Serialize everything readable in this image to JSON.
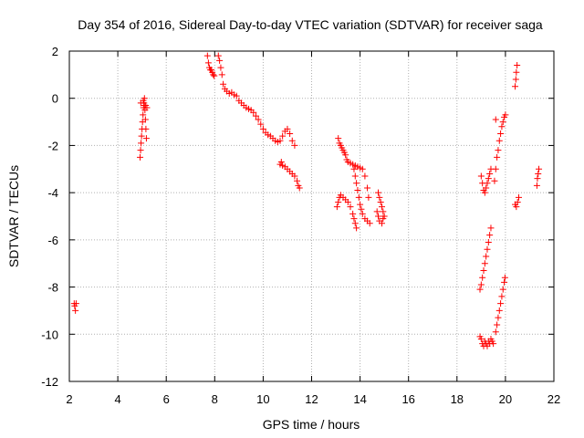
{
  "chart_data": {
    "type": "scatter",
    "title": "Day 354 of 2016, Sidereal Day-to-day VTEC variation (SDTVAR) for receiver saga",
    "xlabel": "GPS time / hours",
    "ylabel": "SDTVAR / TECUs",
    "xlim": [
      2,
      22
    ],
    "ylim": [
      -12,
      2
    ],
    "xticks": [
      "2",
      "4",
      "6",
      "8",
      "10",
      "12",
      "14",
      "16",
      "18",
      "20",
      "22"
    ],
    "yticks": [
      "2",
      "0",
      "-2",
      "-4",
      "-6",
      "-8",
      "-10",
      "-12"
    ],
    "grid": true,
    "marker": "+",
    "color": "#ff0000",
    "series": [
      {
        "name": "SDTVAR",
        "points": [
          [
            2.2,
            -8.7
          ],
          [
            2.22,
            -8.8
          ],
          [
            2.25,
            -9.0
          ],
          [
            2.28,
            -8.7
          ],
          [
            4.92,
            -2.5
          ],
          [
            4.94,
            -2.2
          ],
          [
            4.96,
            -1.9
          ],
          [
            4.98,
            -1.6
          ],
          [
            5.0,
            -1.3
          ],
          [
            5.02,
            -1.0
          ],
          [
            5.04,
            -0.7
          ],
          [
            5.06,
            -0.4
          ],
          [
            5.08,
            -0.2
          ],
          [
            5.1,
            -0.3
          ],
          [
            5.12,
            -0.5
          ],
          [
            5.14,
            -0.9
          ],
          [
            5.16,
            -1.3
          ],
          [
            5.18,
            -1.7
          ],
          [
            4.95,
            -0.2
          ],
          [
            5.05,
            -0.1
          ],
          [
            5.1,
            0.0
          ],
          [
            5.15,
            -0.3
          ],
          [
            5.2,
            -0.4
          ],
          [
            7.7,
            1.8
          ],
          [
            7.74,
            1.5
          ],
          [
            7.78,
            1.3
          ],
          [
            7.82,
            1.2
          ],
          [
            7.86,
            1.2
          ],
          [
            7.9,
            1.1
          ],
          [
            7.94,
            1.0
          ],
          [
            7.98,
            0.95
          ],
          [
            8.15,
            1.8
          ],
          [
            8.2,
            1.6
          ],
          [
            8.25,
            1.3
          ],
          [
            8.3,
            1.0
          ],
          [
            8.35,
            0.6
          ],
          [
            8.42,
            0.4
          ],
          [
            8.5,
            0.3
          ],
          [
            8.6,
            0.2
          ],
          [
            8.7,
            0.25
          ],
          [
            8.8,
            0.15
          ],
          [
            8.9,
            0.1
          ],
          [
            9.0,
            -0.1
          ],
          [
            9.1,
            -0.2
          ],
          [
            9.2,
            -0.3
          ],
          [
            9.3,
            -0.4
          ],
          [
            9.4,
            -0.45
          ],
          [
            9.5,
            -0.5
          ],
          [
            9.6,
            -0.6
          ],
          [
            9.7,
            -0.75
          ],
          [
            9.8,
            -0.9
          ],
          [
            9.9,
            -1.1
          ],
          [
            10.0,
            -1.3
          ],
          [
            10.1,
            -1.45
          ],
          [
            10.2,
            -1.55
          ],
          [
            10.3,
            -1.6
          ],
          [
            10.4,
            -1.7
          ],
          [
            10.5,
            -1.8
          ],
          [
            10.6,
            -1.85
          ],
          [
            10.7,
            -1.8
          ],
          [
            10.8,
            -1.6
          ],
          [
            10.9,
            -1.4
          ],
          [
            11.0,
            -1.3
          ],
          [
            11.1,
            -1.5
          ],
          [
            11.2,
            -1.8
          ],
          [
            11.3,
            -2.0
          ],
          [
            10.7,
            -2.8
          ],
          [
            10.75,
            -2.7
          ],
          [
            10.8,
            -2.85
          ],
          [
            10.9,
            -2.9
          ],
          [
            11.0,
            -3.0
          ],
          [
            11.1,
            -3.1
          ],
          [
            11.2,
            -3.2
          ],
          [
            11.3,
            -3.3
          ],
          [
            11.4,
            -3.5
          ],
          [
            11.45,
            -3.7
          ],
          [
            11.5,
            -3.8
          ],
          [
            13.1,
            -1.7
          ],
          [
            13.15,
            -1.9
          ],
          [
            13.2,
            -2.0
          ],
          [
            13.25,
            -2.1
          ],
          [
            13.3,
            -2.2
          ],
          [
            13.35,
            -2.3
          ],
          [
            13.4,
            -2.4
          ],
          [
            13.45,
            -2.6
          ],
          [
            13.5,
            -2.7
          ],
          [
            13.6,
            -2.75
          ],
          [
            13.7,
            -2.8
          ],
          [
            13.8,
            -2.85
          ],
          [
            13.9,
            -2.9
          ],
          [
            14.0,
            -2.95
          ],
          [
            14.1,
            -3.0
          ],
          [
            14.2,
            -3.3
          ],
          [
            14.3,
            -3.8
          ],
          [
            14.35,
            -4.2
          ],
          [
            13.05,
            -4.6
          ],
          [
            13.1,
            -4.4
          ],
          [
            13.15,
            -4.2
          ],
          [
            13.2,
            -4.1
          ],
          [
            13.3,
            -4.2
          ],
          [
            13.4,
            -4.3
          ],
          [
            13.5,
            -4.4
          ],
          [
            13.6,
            -4.6
          ],
          [
            13.7,
            -4.9
          ],
          [
            13.75,
            -5.1
          ],
          [
            13.8,
            -5.3
          ],
          [
            13.85,
            -5.5
          ],
          [
            13.75,
            -3.0
          ],
          [
            13.8,
            -3.3
          ],
          [
            13.85,
            -3.6
          ],
          [
            13.9,
            -3.9
          ],
          [
            13.95,
            -4.2
          ],
          [
            14.0,
            -4.5
          ],
          [
            14.05,
            -4.7
          ],
          [
            14.1,
            -4.9
          ],
          [
            14.2,
            -5.1
          ],
          [
            14.3,
            -5.2
          ],
          [
            14.4,
            -5.3
          ],
          [
            14.75,
            -4.0
          ],
          [
            14.8,
            -4.2
          ],
          [
            14.85,
            -4.4
          ],
          [
            14.9,
            -4.6
          ],
          [
            14.95,
            -4.8
          ],
          [
            15.0,
            -5.0
          ],
          [
            14.7,
            -4.8
          ],
          [
            14.75,
            -5.0
          ],
          [
            14.8,
            -5.2
          ],
          [
            14.9,
            -5.3
          ],
          [
            14.95,
            -5.1
          ],
          [
            18.95,
            -8.1
          ],
          [
            19.0,
            -7.9
          ],
          [
            19.05,
            -7.6
          ],
          [
            19.1,
            -7.3
          ],
          [
            19.15,
            -7.0
          ],
          [
            19.2,
            -6.7
          ],
          [
            19.25,
            -6.4
          ],
          [
            19.3,
            -6.1
          ],
          [
            19.35,
            -5.8
          ],
          [
            19.4,
            -5.5
          ],
          [
            18.95,
            -10.1
          ],
          [
            19.0,
            -10.2
          ],
          [
            19.05,
            -10.4
          ],
          [
            19.1,
            -10.5
          ],
          [
            19.15,
            -10.3
          ],
          [
            19.2,
            -10.4
          ],
          [
            19.25,
            -10.5
          ],
          [
            19.3,
            -10.3
          ],
          [
            19.35,
            -10.4
          ],
          [
            19.4,
            -10.2
          ],
          [
            19.45,
            -10.3
          ],
          [
            19.5,
            -10.4
          ],
          [
            19.0,
            -3.3
          ],
          [
            19.05,
            -3.6
          ],
          [
            19.1,
            -3.9
          ],
          [
            19.15,
            -4.0
          ],
          [
            19.2,
            -3.8
          ],
          [
            19.25,
            -3.6
          ],
          [
            19.3,
            -3.4
          ],
          [
            19.35,
            -3.2
          ],
          [
            19.4,
            -3.0
          ],
          [
            19.6,
            -9.9
          ],
          [
            19.65,
            -9.6
          ],
          [
            19.7,
            -9.3
          ],
          [
            19.75,
            -9.0
          ],
          [
            19.8,
            -8.7
          ],
          [
            19.85,
            -8.4
          ],
          [
            19.9,
            -8.1
          ],
          [
            19.95,
            -7.8
          ],
          [
            19.98,
            -7.6
          ],
          [
            19.55,
            -3.5
          ],
          [
            19.6,
            -3.0
          ],
          [
            19.65,
            -2.5
          ],
          [
            19.7,
            -2.2
          ],
          [
            19.75,
            -1.8
          ],
          [
            19.8,
            -1.5
          ],
          [
            19.85,
            -1.2
          ],
          [
            19.9,
            -1.0
          ],
          [
            19.95,
            -0.8
          ],
          [
            20.0,
            -0.7
          ],
          [
            19.6,
            -0.9
          ],
          [
            20.4,
            0.5
          ],
          [
            20.43,
            0.8
          ],
          [
            20.45,
            1.1
          ],
          [
            20.48,
            1.4
          ],
          [
            20.4,
            -4.5
          ],
          [
            20.45,
            -4.6
          ],
          [
            20.5,
            -4.4
          ],
          [
            20.55,
            -4.2
          ],
          [
            21.3,
            -3.7
          ],
          [
            21.32,
            -3.4
          ],
          [
            21.35,
            -3.2
          ],
          [
            21.38,
            -3.0
          ]
        ]
      }
    ]
  }
}
